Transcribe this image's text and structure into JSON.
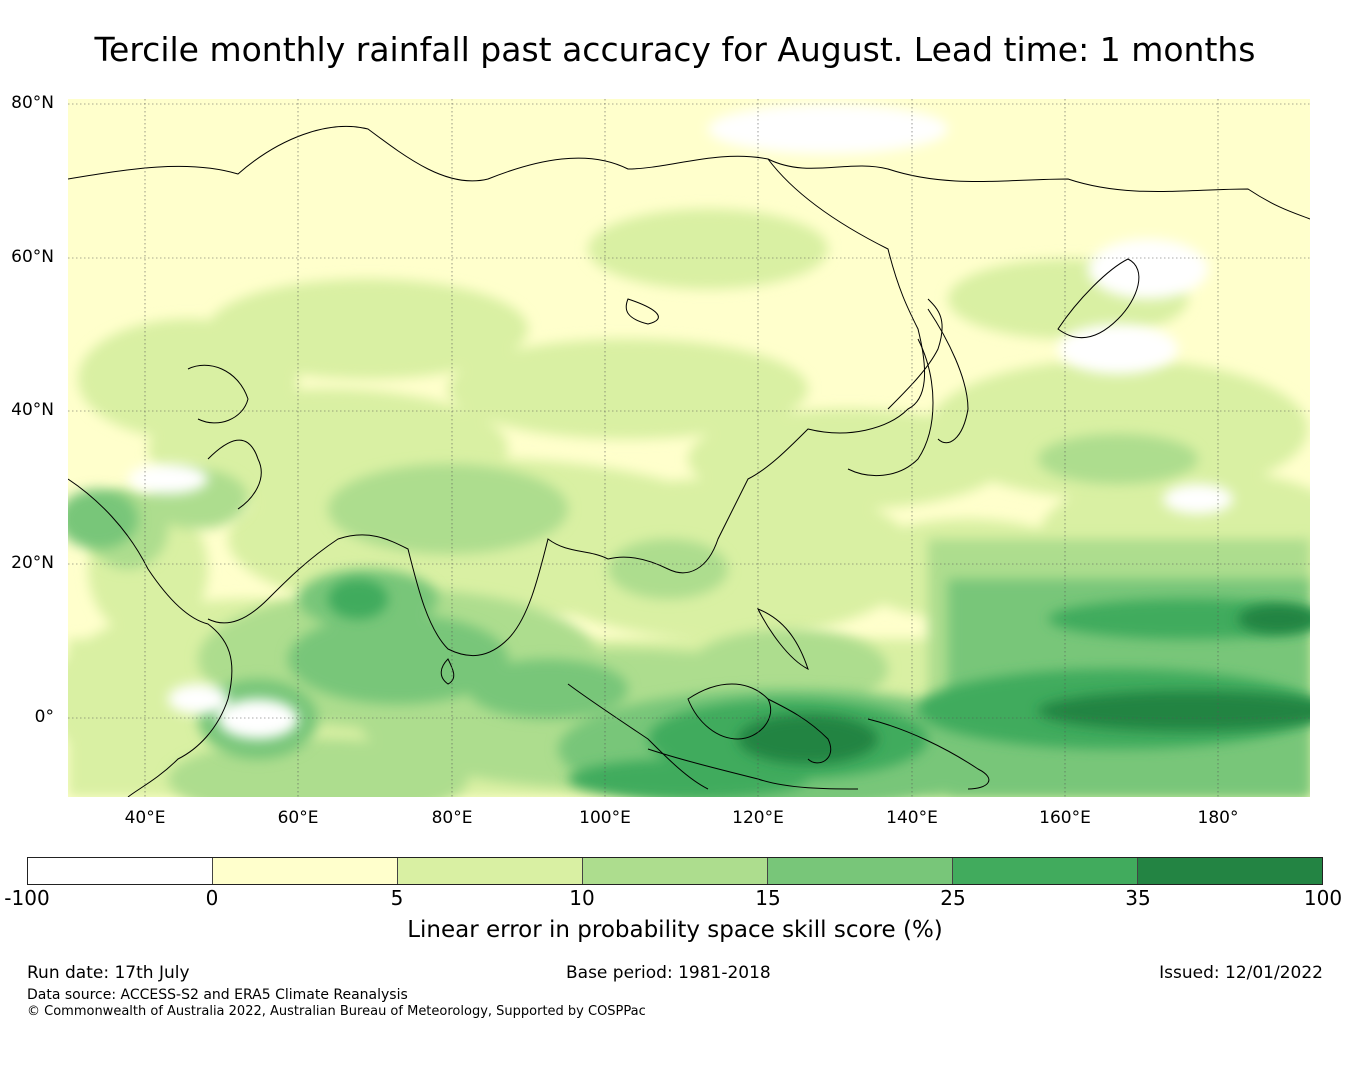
{
  "title": "Tercile monthly rainfall past accuracy for August. Lead time: 1 months",
  "map": {
    "lat_labels": [
      "80°N",
      "60°N",
      "40°N",
      "20°N",
      "0°"
    ],
    "lon_labels": [
      "40°E",
      "60°E",
      "80°E",
      "100°E",
      "120°E",
      "140°E",
      "160°E",
      "180°"
    ],
    "extent": {
      "lon": [
        30,
        192
      ],
      "lat": [
        -10,
        81
      ]
    }
  },
  "colorbar": {
    "ticks": [
      "-100",
      "0",
      "5",
      "10",
      "15",
      "25",
      "35",
      "100"
    ],
    "colors": [
      "#ffffff",
      "#ffffcc",
      "#d9f0a3",
      "#addd8e",
      "#78c679",
      "#41ab5d",
      "#238443"
    ],
    "label": "Linear error in probability space skill score (%)"
  },
  "footer": {
    "run_date": "Run date: 17th July",
    "base_period": "Base period: 1981-2018",
    "issued": "Issued: 12/01/2022",
    "data_source": "Data source: ACCESS-S2 and ERA5 Climate Reanalysis",
    "copyright": "© Commonwealth of Australia 2022, Australian Bureau of Meteorology, Supported by COSPPac"
  }
}
